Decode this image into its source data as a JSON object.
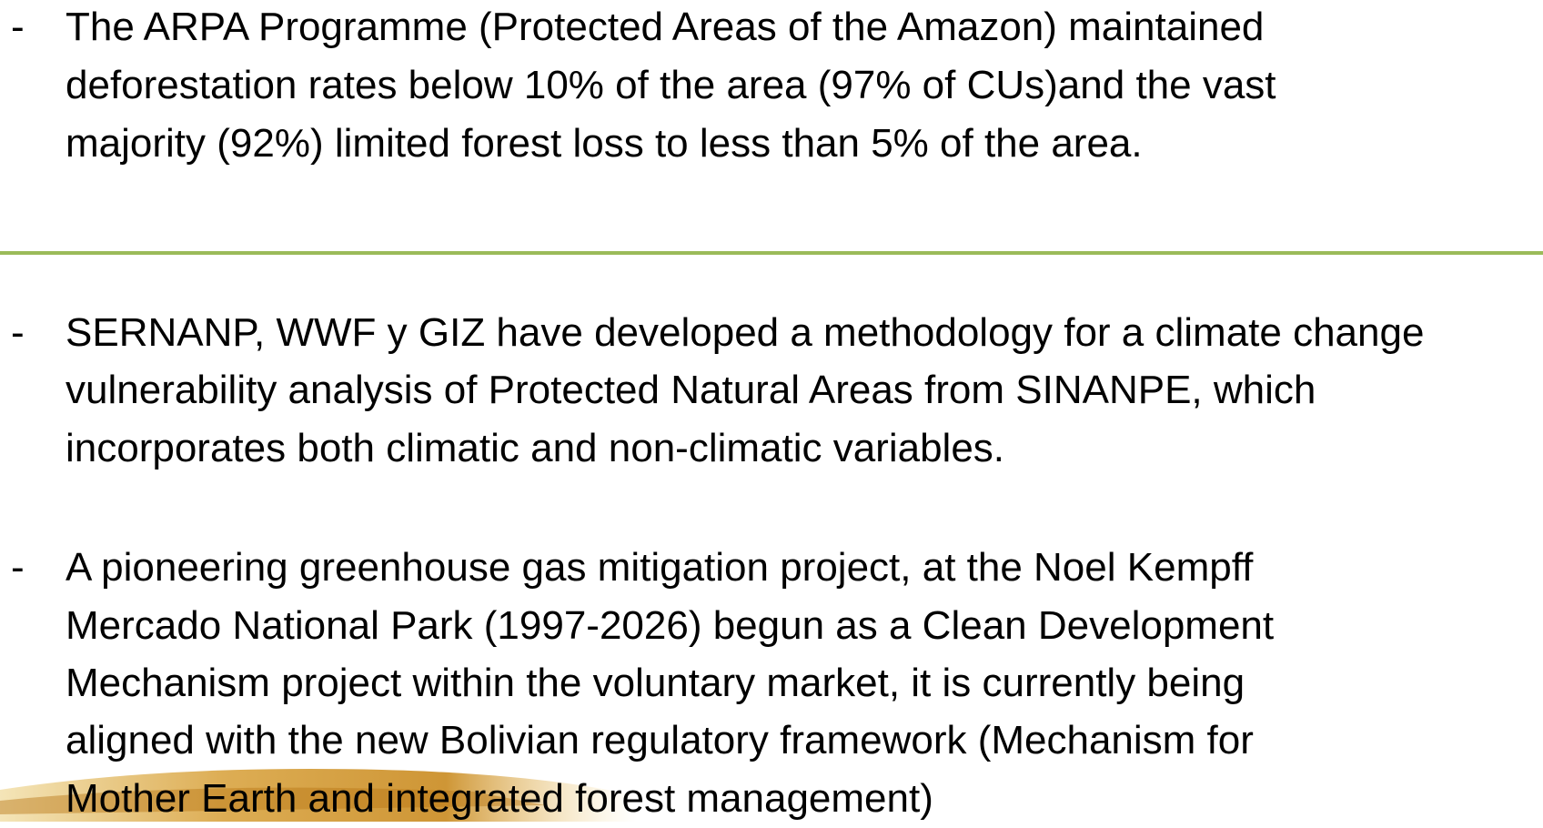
{
  "bullets": [
    {
      "marker": "-",
      "lines": [
        "The ARPA Programme (Protected Areas of the Amazon) maintained",
        "deforestation rates below 10% of the area (97% of CUs)and the vast",
        "majority (92%) limited forest loss to less than 5% of the area."
      ]
    },
    {
      "marker": "-",
      "lines": [
        "SERNANP, WWF y GIZ have developed a methodology for a climate change",
        "vulnerability analysis of Protected Natural Areas from SINANPE, which",
        "incorporates both climatic and non-climatic variables."
      ]
    },
    {
      "marker": "-",
      "lines": [
        "A pioneering greenhouse gas mitigation project, at the Noel Kempff",
        "Mercado National Park (1997-2026) begun as a Clean Development",
        "Mechanism project within the voluntary market, it is currently being",
        "aligned with the new Bolivian regulatory framework (Mechanism for",
        "Mother Earth and integrated forest management)"
      ]
    }
  ]
}
